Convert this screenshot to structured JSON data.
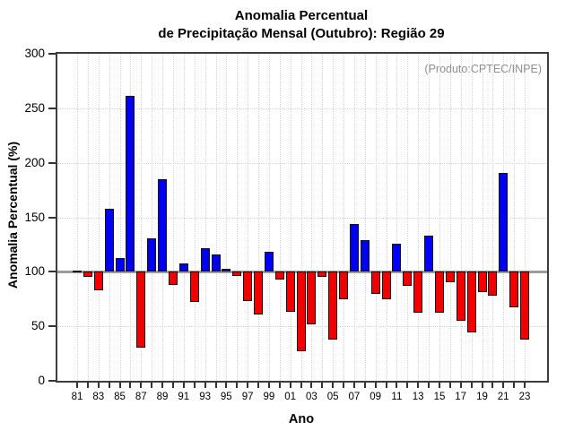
{
  "title": {
    "line1": "Anomalia Percentual",
    "line2": "de Precipitação Mensal (Outubro): Região 29"
  },
  "annotation": "(Produto:CPTEC/INPE)",
  "chart_data": {
    "type": "bar",
    "title": "Anomalia Percentual de Precipitação Mensal (Outubro): Região 29",
    "xlabel": "Ano",
    "ylabel": "Anomalia Percentual (%)",
    "ylim": [
      0,
      300
    ],
    "yticks": [
      0,
      50,
      100,
      150,
      200,
      250,
      300
    ],
    "baseline": 100,
    "grid": true,
    "legend": "none",
    "categories": [
      "81",
      "82",
      "83",
      "84",
      "85",
      "86",
      "87",
      "88",
      "89",
      "90",
      "91",
      "92",
      "93",
      "94",
      "95",
      "96",
      "97",
      "98",
      "99",
      "00",
      "01",
      "02",
      "03",
      "04",
      "05",
      "06",
      "07",
      "08",
      "09",
      "10",
      "11",
      "12",
      "13",
      "14",
      "15",
      "16",
      "17",
      "18",
      "19",
      "20",
      "21",
      "22",
      "23"
    ],
    "values": [
      101,
      95,
      83,
      158,
      113,
      261,
      30,
      131,
      185,
      88,
      108,
      72,
      122,
      116,
      103,
      96,
      73,
      61,
      118,
      93,
      63,
      27,
      52,
      95,
      38,
      75,
      144,
      129,
      80,
      75,
      126,
      87,
      62,
      133,
      62,
      90,
      55,
      44,
      81,
      78,
      191,
      67,
      38
    ],
    "label_every": 2,
    "colors": {
      "above_baseline": "#0000f2",
      "below_baseline": "#f20000",
      "baseline_line": "#9c9c9c",
      "annotation_text": "#8e8e8e"
    }
  }
}
